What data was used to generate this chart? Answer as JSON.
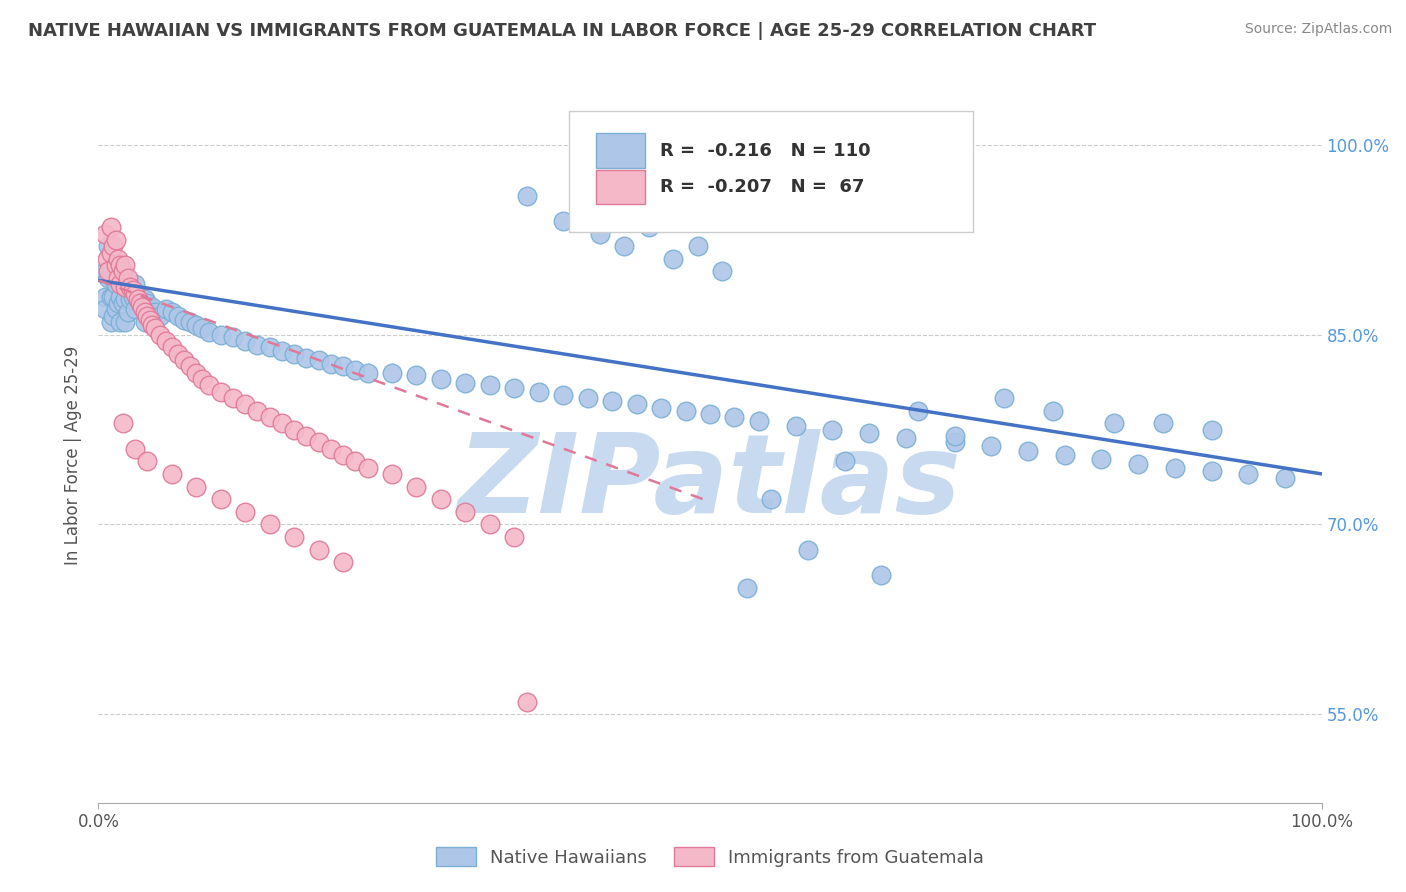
{
  "title": "NATIVE HAWAIIAN VS IMMIGRANTS FROM GUATEMALA IN LABOR FORCE | AGE 25-29 CORRELATION CHART",
  "source": "Source: ZipAtlas.com",
  "ylabel": "In Labor Force | Age 25-29",
  "legend_series1_label": "Native Hawaiians",
  "legend_series2_label": "Immigrants from Guatemala",
  "legend_R1": "-0.216",
  "legend_N1": "110",
  "legend_R2": "-0.207",
  "legend_N2": "67",
  "series1_color": "#aec6e8",
  "series1_edge_color": "#7bafd4",
  "series2_color": "#f4b8c8",
  "series2_edge_color": "#e07898",
  "trendline1_color": "#4472c4",
  "trendline2_color": "#e07898",
  "background_color": "#ffffff",
  "grid_color": "#cccccc",
  "title_color": "#404040",
  "watermark_text": "ZIPatlas",
  "watermark_color": "#c8daf0",
  "xlim": [
    0.0,
    1.0
  ],
  "ylim": [
    0.48,
    1.03
  ],
  "y_ticks": [
    0.55,
    0.7,
    0.85,
    1.0
  ],
  "y_tick_labels": [
    "55.0%",
    "70.0%",
    "85.0%",
    "100.0%"
  ],
  "x_tick_labels": [
    "0.0%",
    "100.0%"
  ],
  "trendline1_x": [
    0.0,
    1.0
  ],
  "trendline1_y": [
    0.893,
    0.74
  ],
  "trendline2_x": [
    0.0,
    0.5
  ],
  "trendline2_y": [
    0.893,
    0.718
  ],
  "nh_x": [
    0.005,
    0.005,
    0.005,
    0.008,
    0.008,
    0.01,
    0.01,
    0.01,
    0.012,
    0.012,
    0.012,
    0.014,
    0.014,
    0.016,
    0.016,
    0.018,
    0.018,
    0.018,
    0.02,
    0.02,
    0.022,
    0.022,
    0.022,
    0.024,
    0.024,
    0.026,
    0.028,
    0.03,
    0.03,
    0.032,
    0.034,
    0.036,
    0.038,
    0.038,
    0.04,
    0.042,
    0.044,
    0.046,
    0.05,
    0.055,
    0.06,
    0.065,
    0.07,
    0.075,
    0.08,
    0.085,
    0.09,
    0.1,
    0.11,
    0.12,
    0.13,
    0.14,
    0.15,
    0.16,
    0.17,
    0.18,
    0.19,
    0.2,
    0.21,
    0.22,
    0.24,
    0.26,
    0.28,
    0.3,
    0.32,
    0.34,
    0.36,
    0.38,
    0.4,
    0.42,
    0.44,
    0.46,
    0.48,
    0.5,
    0.52,
    0.54,
    0.57,
    0.6,
    0.63,
    0.66,
    0.7,
    0.73,
    0.76,
    0.79,
    0.82,
    0.85,
    0.88,
    0.91,
    0.94,
    0.97,
    0.35,
    0.38,
    0.41,
    0.43,
    0.45,
    0.47,
    0.49,
    0.51,
    0.53,
    0.55,
    0.58,
    0.61,
    0.64,
    0.67,
    0.7,
    0.74,
    0.78,
    0.83,
    0.87,
    0.91
  ],
  "nh_y": [
    0.9,
    0.88,
    0.87,
    0.92,
    0.895,
    0.9,
    0.88,
    0.86,
    0.895,
    0.88,
    0.865,
    0.89,
    0.87,
    0.9,
    0.875,
    0.895,
    0.88,
    0.86,
    0.9,
    0.875,
    0.895,
    0.878,
    0.86,
    0.89,
    0.868,
    0.878,
    0.88,
    0.89,
    0.87,
    0.878,
    0.88,
    0.875,
    0.878,
    0.86,
    0.875,
    0.87,
    0.872,
    0.868,
    0.865,
    0.87,
    0.868,
    0.865,
    0.862,
    0.86,
    0.858,
    0.855,
    0.852,
    0.85,
    0.848,
    0.845,
    0.842,
    0.84,
    0.837,
    0.835,
    0.832,
    0.83,
    0.827,
    0.825,
    0.822,
    0.82,
    0.82,
    0.818,
    0.815,
    0.812,
    0.81,
    0.808,
    0.805,
    0.802,
    0.8,
    0.798,
    0.795,
    0.792,
    0.79,
    0.787,
    0.785,
    0.782,
    0.778,
    0.775,
    0.772,
    0.768,
    0.765,
    0.762,
    0.758,
    0.755,
    0.752,
    0.748,
    0.745,
    0.742,
    0.74,
    0.737,
    0.96,
    0.94,
    0.93,
    0.92,
    0.935,
    0.91,
    0.92,
    0.9,
    0.65,
    0.72,
    0.68,
    0.75,
    0.66,
    0.79,
    0.77,
    0.8,
    0.79,
    0.78,
    0.78,
    0.775
  ],
  "gt_x": [
    0.005,
    0.007,
    0.008,
    0.01,
    0.01,
    0.012,
    0.014,
    0.014,
    0.016,
    0.016,
    0.018,
    0.018,
    0.02,
    0.022,
    0.022,
    0.024,
    0.026,
    0.028,
    0.03,
    0.032,
    0.034,
    0.036,
    0.038,
    0.04,
    0.042,
    0.044,
    0.046,
    0.05,
    0.055,
    0.06,
    0.065,
    0.07,
    0.075,
    0.08,
    0.085,
    0.09,
    0.1,
    0.11,
    0.12,
    0.13,
    0.14,
    0.15,
    0.16,
    0.17,
    0.18,
    0.19,
    0.2,
    0.21,
    0.22,
    0.24,
    0.26,
    0.28,
    0.3,
    0.32,
    0.34,
    0.02,
    0.03,
    0.04,
    0.06,
    0.08,
    0.1,
    0.12,
    0.14,
    0.16,
    0.18,
    0.2,
    0.35
  ],
  "gt_y": [
    0.93,
    0.91,
    0.9,
    0.935,
    0.915,
    0.92,
    0.925,
    0.905,
    0.91,
    0.895,
    0.905,
    0.89,
    0.9,
    0.905,
    0.888,
    0.895,
    0.888,
    0.885,
    0.882,
    0.878,
    0.875,
    0.872,
    0.868,
    0.865,
    0.862,
    0.858,
    0.855,
    0.85,
    0.845,
    0.84,
    0.835,
    0.83,
    0.825,
    0.82,
    0.815,
    0.81,
    0.805,
    0.8,
    0.795,
    0.79,
    0.785,
    0.78,
    0.775,
    0.77,
    0.765,
    0.76,
    0.755,
    0.75,
    0.745,
    0.74,
    0.73,
    0.72,
    0.71,
    0.7,
    0.69,
    0.78,
    0.76,
    0.75,
    0.74,
    0.73,
    0.72,
    0.71,
    0.7,
    0.69,
    0.68,
    0.67,
    0.56
  ]
}
